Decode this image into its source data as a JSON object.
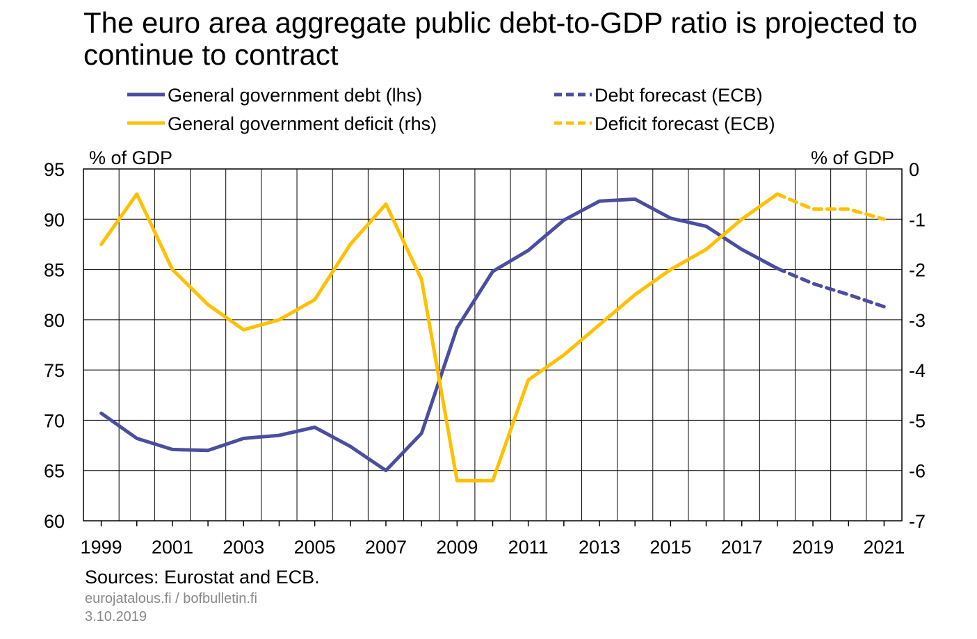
{
  "title": "The euro area aggregate public debt-to-GDP ratio is projected to continue to contract",
  "sources": "Sources: Eurostat and ECB.",
  "footer": {
    "site": "eurojatalous.fi  / bofbulletin.fi",
    "date": "3.10.2019"
  },
  "colors": {
    "debt": "#4B4E9E",
    "deficit": "#FFC000",
    "grid": "#000000"
  },
  "chart_data": {
    "type": "line",
    "title": "The euro area aggregate public debt-to-GDP ratio is projected to continue to contract",
    "ylabel_left": "% of GDP",
    "ylabel_right": "% of GDP",
    "ylim_left": [
      60,
      95
    ],
    "ylim_right": [
      -7,
      0
    ],
    "yticks_left": [
      95,
      90,
      85,
      80,
      75,
      70,
      65,
      60
    ],
    "yticks_right": [
      0,
      -1,
      -2,
      -3,
      -4,
      -5,
      -6,
      -7
    ],
    "xlim": [
      1998.5,
      2021.5
    ],
    "xtick_labels": [
      "1999",
      "2001",
      "2003",
      "2005",
      "2007",
      "2009",
      "2011",
      "2013",
      "2015",
      "2017",
      "2019",
      "2021"
    ],
    "grid": "vertical lines at year boundaries, horizontal lines at left-axis ticks",
    "legend": [
      {
        "name": "General government debt (lhs)",
        "color": "#4B4E9E",
        "style": "solid"
      },
      {
        "name": "Debt forecast (ECB)",
        "color": "#4B4E9E",
        "style": "dashed"
      },
      {
        "name": "General government deficit (rhs)",
        "color": "#FFC000",
        "style": "solid"
      },
      {
        "name": "Deficit forecast (ECB)",
        "color": "#FFC000",
        "style": "dashed"
      }
    ],
    "series": [
      {
        "name": "General government debt (lhs)",
        "axis": "left",
        "style": "solid",
        "color": "#4B4E9E",
        "x": [
          1999,
          2000,
          2001,
          2002,
          2003,
          2004,
          2005,
          2006,
          2007,
          2008,
          2009,
          2010,
          2011,
          2012,
          2013,
          2014,
          2015,
          2016,
          2017,
          2018
        ],
        "values": [
          70.7,
          68.2,
          67.1,
          67.0,
          68.2,
          68.5,
          69.3,
          67.4,
          65.0,
          68.7,
          79.2,
          84.8,
          86.9,
          89.9,
          91.8,
          92.0,
          90.1,
          89.3,
          87.0,
          85.1
        ]
      },
      {
        "name": "Debt forecast (ECB)",
        "axis": "left",
        "style": "dashed",
        "color": "#4B4E9E",
        "x": [
          2018,
          2019,
          2020,
          2021
        ],
        "values": [
          85.1,
          83.6,
          82.5,
          81.3
        ]
      },
      {
        "name": "General government deficit (rhs)",
        "axis": "right",
        "style": "solid",
        "color": "#FFC000",
        "x": [
          1999,
          2000,
          2001,
          2002,
          2003,
          2004,
          2005,
          2006,
          2007,
          2008,
          2009,
          2010,
          2011,
          2012,
          2013,
          2014,
          2015,
          2016,
          2017,
          2018
        ],
        "values": [
          -1.5,
          -0.5,
          -2.0,
          -2.7,
          -3.2,
          -3.0,
          -2.6,
          -1.5,
          -0.7,
          -2.2,
          -6.2,
          -6.2,
          -4.2,
          -3.7,
          -3.1,
          -2.5,
          -2.0,
          -1.6,
          -1.0,
          -0.5
        ]
      },
      {
        "name": "Deficit forecast (ECB)",
        "axis": "right",
        "style": "dashed",
        "color": "#FFC000",
        "x": [
          2018,
          2019,
          2020,
          2021
        ],
        "values": [
          -0.5,
          -0.8,
          -0.8,
          -1.0
        ]
      }
    ]
  }
}
